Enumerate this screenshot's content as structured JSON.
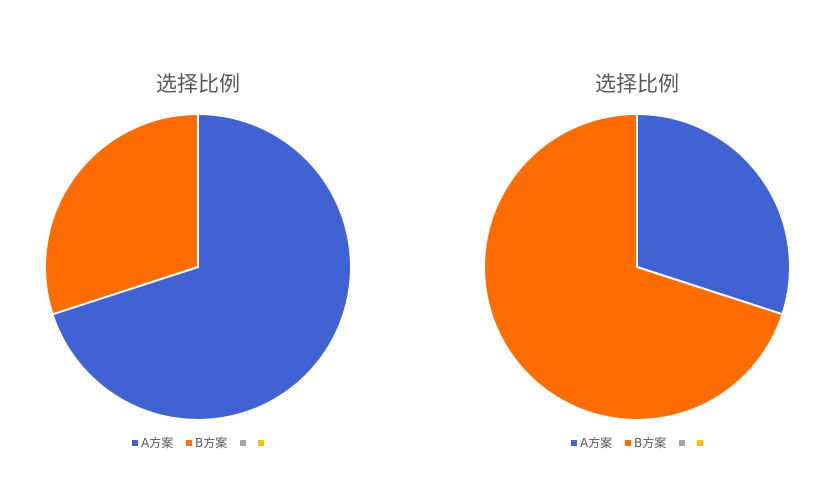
{
  "chart_data": [
    {
      "type": "pie",
      "title": "选择比例",
      "categories": [
        "A方案",
        "B方案",
        "",
        ""
      ],
      "values": [
        70,
        30,
        0,
        0
      ],
      "colors": [
        "#4062d2",
        "#ff6d00",
        "#a5a5a5",
        "#ffc000"
      ],
      "legend_position": "bottom"
    },
    {
      "type": "pie",
      "title": "选择比例",
      "categories": [
        "A方案",
        "B方案",
        "",
        ""
      ],
      "values": [
        30,
        70,
        0,
        0
      ],
      "colors": [
        "#4062d2",
        "#ff6d00",
        "#a5a5a5",
        "#ffc000"
      ],
      "legend_position": "bottom"
    }
  ]
}
